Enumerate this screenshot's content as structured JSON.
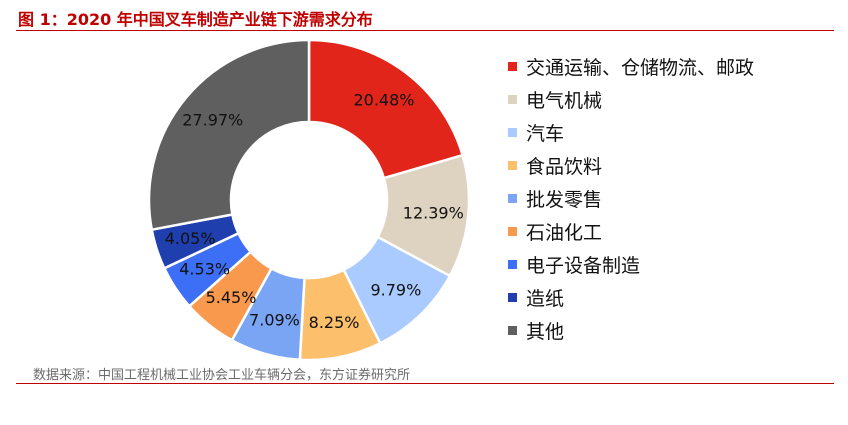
{
  "title": "图 1：2020 年中国叉车制造产业链下游需求分布",
  "source": "数据来源：中国工程机械工业协会工业车辆分会，东方证券研究所",
  "chart_data": {
    "type": "pie",
    "donut": true,
    "legend_position": "right",
    "categories": [
      "交通运输、仓储物流、邮政",
      "电气机械",
      "汽车",
      "食品饮料",
      "批发零售",
      "石油化工",
      "电子设备制造",
      "造纸",
      "其他"
    ],
    "values": [
      20.48,
      12.39,
      9.79,
      8.25,
      7.09,
      5.45,
      4.53,
      4.05,
      27.97
    ],
    "labels": [
      "20.48%",
      "12.39%",
      "9.79%",
      "8.25%",
      "7.09%",
      "5.45%",
      "4.53%",
      "4.05%",
      "27.97%"
    ],
    "colors": [
      "#e1251b",
      "#ddd3c0",
      "#a9cbff",
      "#fcbf6c",
      "#7aa5f5",
      "#f8994e",
      "#3d6ef6",
      "#1f3fae",
      "#5f5f5f"
    ]
  }
}
